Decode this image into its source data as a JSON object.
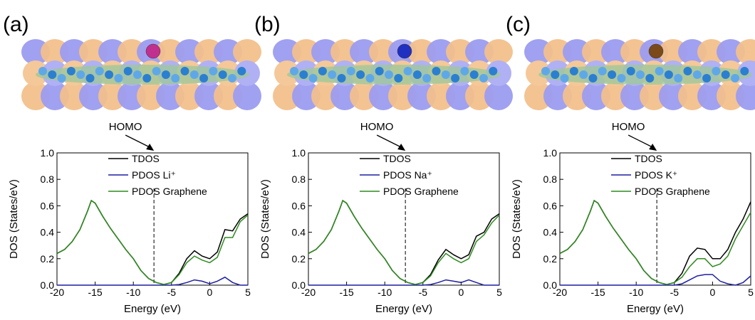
{
  "chart_data": [
    {
      "type": "line",
      "panel_label": "(a)",
      "annotation": "HOMO",
      "homo_x": -7.3,
      "x_label": "Energy (eV)",
      "y_label": "DOS (States/eV)",
      "xlim": [
        -20,
        5
      ],
      "xticks": [
        -20,
        -15,
        -10,
        -5,
        0,
        5
      ],
      "ylim": [
        0,
        1.0
      ],
      "yticks": [
        {
          "value": 0,
          "label": "0.0"
        },
        {
          "value": 0.2,
          "label": "0.2"
        },
        {
          "value": 0.4,
          "label": "0.4"
        },
        {
          "value": 0.6,
          "label": "0.6"
        },
        {
          "value": 0.8,
          "label": "0.8"
        },
        {
          "value": 1.0,
          "label": "1.0"
        }
      ],
      "x": [
        -20,
        -19,
        -18,
        -17,
        -16,
        -15.5,
        -15,
        -14,
        -13,
        -12,
        -11,
        -10,
        -9,
        -8,
        -7,
        -6,
        -5,
        -4,
        -3,
        -2,
        -1,
        0,
        1,
        2,
        3,
        4,
        5
      ],
      "series": [
        {
          "name": "TDOS",
          "color": "#000000",
          "values": [
            0.24,
            0.27,
            0.33,
            0.42,
            0.56,
            0.64,
            0.62,
            0.52,
            0.43,
            0.35,
            0.27,
            0.2,
            0.11,
            0.05,
            0.02,
            0.005,
            0.02,
            0.09,
            0.2,
            0.26,
            0.22,
            0.2,
            0.25,
            0.42,
            0.41,
            0.5,
            0.54
          ]
        },
        {
          "name": "PDOS Li⁺",
          "color": "#1f1fa0",
          "values": [
            0,
            0,
            0,
            0,
            0,
            0,
            0,
            0,
            0,
            0,
            0,
            0,
            0,
            0,
            0,
            0,
            0,
            0.005,
            0.02,
            0.04,
            0.03,
            0.01,
            0.03,
            0.06,
            0.02,
            0,
            0
          ]
        },
        {
          "name": "PDOS Graphene",
          "color": "#2e8b1e",
          "values": [
            0.24,
            0.27,
            0.33,
            0.42,
            0.56,
            0.64,
            0.62,
            0.52,
            0.43,
            0.35,
            0.27,
            0.2,
            0.11,
            0.05,
            0.02,
            0.005,
            0.02,
            0.08,
            0.17,
            0.22,
            0.19,
            0.17,
            0.21,
            0.36,
            0.36,
            0.48,
            0.53
          ]
        }
      ]
    },
    {
      "type": "line",
      "panel_label": "(b)",
      "annotation": "HOMO",
      "homo_x": -7.3,
      "x_label": "Energy (eV)",
      "y_label": "DOS (States/eV)",
      "xlim": [
        -20,
        5
      ],
      "xticks": [
        -20,
        -15,
        -10,
        -5,
        0,
        5
      ],
      "ylim": [
        0,
        1.0
      ],
      "yticks": [
        {
          "value": 0,
          "label": "0.0"
        },
        {
          "value": 0.2,
          "label": "0.2"
        },
        {
          "value": 0.4,
          "label": "0.4"
        },
        {
          "value": 0.6,
          "label": "0.6"
        },
        {
          "value": 0.8,
          "label": "0.8"
        },
        {
          "value": 1.0,
          "label": "1.0"
        }
      ],
      "x": [
        -20,
        -19,
        -18,
        -17,
        -16,
        -15.5,
        -15,
        -14,
        -13,
        -12,
        -11,
        -10,
        -9,
        -8,
        -7,
        -6,
        -5,
        -4,
        -3,
        -2,
        -1,
        0,
        1,
        2,
        3,
        4,
        5
      ],
      "series": [
        {
          "name": "TDOS",
          "color": "#000000",
          "values": [
            0.24,
            0.27,
            0.33,
            0.42,
            0.56,
            0.64,
            0.62,
            0.52,
            0.43,
            0.35,
            0.27,
            0.2,
            0.11,
            0.05,
            0.02,
            0.005,
            0.02,
            0.08,
            0.19,
            0.27,
            0.23,
            0.2,
            0.23,
            0.37,
            0.4,
            0.5,
            0.54
          ]
        },
        {
          "name": "PDOS Na⁺",
          "color": "#1f1fa0",
          "values": [
            0,
            0,
            0,
            0,
            0,
            0,
            0,
            0,
            0,
            0,
            0,
            0,
            0,
            0,
            0,
            0,
            0,
            0.005,
            0.02,
            0.04,
            0.03,
            0.02,
            0.04,
            0.02,
            0,
            0,
            0
          ]
        },
        {
          "name": "PDOS Graphene",
          "color": "#2e8b1e",
          "values": [
            0.24,
            0.27,
            0.33,
            0.42,
            0.56,
            0.64,
            0.62,
            0.52,
            0.43,
            0.35,
            0.27,
            0.2,
            0.11,
            0.05,
            0.02,
            0.005,
            0.02,
            0.07,
            0.17,
            0.24,
            0.2,
            0.17,
            0.2,
            0.33,
            0.38,
            0.47,
            0.53
          ]
        }
      ]
    },
    {
      "type": "line",
      "panel_label": "(c)",
      "annotation": "HOMO",
      "homo_x": -7.3,
      "x_label": "Energy (eV)",
      "y_label": "DOS (States/eV)",
      "xlim": [
        -20,
        5
      ],
      "xticks": [
        -20,
        -15,
        -10,
        -5,
        0,
        5
      ],
      "ylim": [
        0,
        1.0
      ],
      "yticks": [
        {
          "value": 0,
          "label": "0.0"
        },
        {
          "value": 0.2,
          "label": "0.2"
        },
        {
          "value": 0.4,
          "label": "0.4"
        },
        {
          "value": 0.6,
          "label": "0.6"
        },
        {
          "value": 0.8,
          "label": "0.8"
        },
        {
          "value": 1.0,
          "label": "1.0"
        }
      ],
      "x": [
        -20,
        -19,
        -18,
        -17,
        -16,
        -15.5,
        -15,
        -14,
        -13,
        -12,
        -11,
        -10,
        -9,
        -8,
        -7,
        -6,
        -5,
        -4,
        -3,
        -2,
        -1,
        0,
        1,
        2,
        3,
        4,
        5
      ],
      "series": [
        {
          "name": "TDOS",
          "color": "#000000",
          "values": [
            0.24,
            0.27,
            0.33,
            0.42,
            0.56,
            0.64,
            0.62,
            0.52,
            0.43,
            0.35,
            0.27,
            0.2,
            0.11,
            0.05,
            0.02,
            0.005,
            0.02,
            0.09,
            0.22,
            0.28,
            0.27,
            0.2,
            0.2,
            0.27,
            0.4,
            0.5,
            0.63
          ]
        },
        {
          "name": "PDOS K⁺",
          "color": "#1f1fa0",
          "values": [
            0,
            0,
            0,
            0,
            0,
            0,
            0,
            0,
            0,
            0,
            0,
            0,
            0,
            0,
            0,
            0,
            0,
            0.01,
            0.04,
            0.07,
            0.08,
            0.08,
            0.03,
            0.01,
            0,
            0.02,
            0.07
          ]
        },
        {
          "name": "PDOS Graphene",
          "color": "#2e8b1e",
          "values": [
            0.24,
            0.27,
            0.33,
            0.42,
            0.56,
            0.64,
            0.62,
            0.52,
            0.43,
            0.35,
            0.27,
            0.2,
            0.11,
            0.05,
            0.02,
            0.005,
            0.02,
            0.06,
            0.14,
            0.2,
            0.2,
            0.14,
            0.16,
            0.22,
            0.35,
            0.45,
            0.55
          ]
        }
      ]
    }
  ]
}
